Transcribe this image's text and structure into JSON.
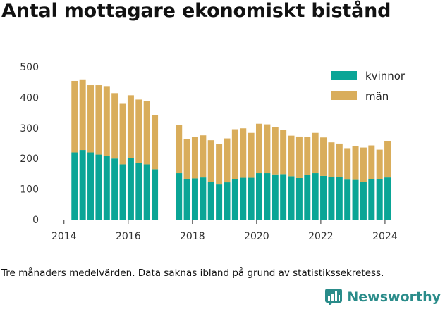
{
  "title": "Antal mottagare ekonomiskt bistånd",
  "footnote": "Tre månaders medelvärden. Data saknas ibland på grund av statistikssekretess.",
  "logo": {
    "text": "Newsworthy",
    "icon": "newsworthy-logo-icon"
  },
  "colors": {
    "kvinnor": "#0aa596",
    "man": "#d9ad5b",
    "axis": "#333333"
  },
  "chart_data": {
    "type": "bar",
    "stacked": true,
    "title": "Antal mottagare ekonomiskt bistånd",
    "xlabel": "",
    "ylabel": "",
    "ylim": [
      0,
      500
    ],
    "xlim": [
      2013.5,
      2025.1
    ],
    "y_ticks": [
      0,
      100,
      200,
      300,
      400,
      500
    ],
    "x_ticks": [
      2014,
      2016,
      2018,
      2020,
      2022,
      2024
    ],
    "grid": false,
    "legend_position": "top-right",
    "x": [
      2014.33,
      2014.58,
      2014.83,
      2015.08,
      2015.33,
      2015.58,
      2015.83,
      2016.08,
      2016.33,
      2016.58,
      2016.83,
      2017.58,
      2017.83,
      2018.08,
      2018.33,
      2018.58,
      2018.83,
      2019.08,
      2019.33,
      2019.58,
      2019.83,
      2020.08,
      2020.33,
      2020.58,
      2020.83,
      2021.08,
      2021.33,
      2021.58,
      2021.83,
      2022.08,
      2022.33,
      2022.58,
      2022.83,
      2023.08,
      2023.33,
      2023.58,
      2023.83,
      2024.08
    ],
    "series": [
      {
        "name": "kvinnor",
        "values": [
          220,
          228,
          220,
          213,
          209,
          200,
          181,
          202,
          185,
          181,
          165,
          152,
          132,
          135,
          138,
          124,
          115,
          122,
          132,
          137,
          137,
          152,
          152,
          148,
          149,
          142,
          136,
          146,
          152,
          143,
          140,
          140,
          131,
          130,
          123,
          132,
          133,
          138
        ]
      },
      {
        "name": "män",
        "values": [
          234,
          231,
          220,
          227,
          228,
          214,
          198,
          205,
          208,
          208,
          178,
          158,
          132,
          136,
          138,
          136,
          132,
          144,
          164,
          162,
          147,
          162,
          160,
          154,
          145,
          133,
          136,
          125,
          132,
          126,
          113,
          109,
          103,
          111,
          113,
          111,
          96,
          118
        ]
      }
    ]
  }
}
